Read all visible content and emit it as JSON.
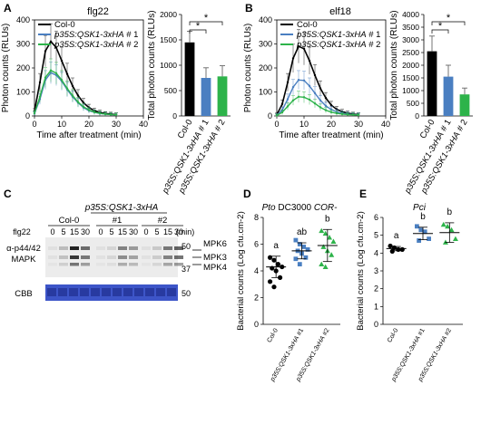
{
  "figure": {
    "panels": {
      "A": {
        "letter": "A",
        "line_title": "flg22",
        "legend": [
          "Col-0",
          "p35S:QSK1-3xHA # 1",
          "p35S:QSK1-3xHA # 2"
        ],
        "y_label": "Photon counts (RLUs)",
        "x_label": "Time after treatment  (min)",
        "bar_y_label": "Total photon counts (RLUs)",
        "bar_labels": [
          "Col-0",
          "p35S:QSK1-3xHA # 1",
          "p35S:QSK1-3xHA # 2"
        ],
        "sig": [
          "*",
          "*"
        ]
      },
      "B": {
        "letter": "B",
        "line_title": "elf18",
        "legend": [
          "Col-0",
          "p35S:QSK1-3xHA # 1",
          "p35S:QSK1-3xHA # 2"
        ],
        "y_label": "Photon counts (RLUs)",
        "x_label": "Time after treatment  (min)",
        "bar_y_label": "Total photon counts (RLUs)",
        "bar_labels": [
          "Col-0",
          "p35S:QSK1-3xHA # 1",
          "p35S:QSK1-3xHA # 2"
        ],
        "sig": [
          "*",
          "*"
        ]
      },
      "C": {
        "letter": "C",
        "transgene": "p35S:QSK1-3xHA",
        "groups": [
          "Col-0",
          "#1",
          "#2"
        ],
        "times": [
          "0",
          "5",
          "15",
          "30"
        ],
        "time_unit": "(min)",
        "treatment": "flg22",
        "blot_label": [
          "α-p44/42",
          "MAPK"
        ],
        "bands": [
          "MPK6",
          "MPK3",
          "MPK4"
        ],
        "markers": [
          "50",
          "37"
        ],
        "cbb_label": "CBB",
        "cbb_marker": "50"
      },
      "D": {
        "letter": "D",
        "title": "Pto DC3000 COR-",
        "y_label": "Bacterial counts (Log cfu.cm-2)",
        "categories": [
          "Col-0",
          "p35S:QSK1-3xHA #1",
          "p35S:QSK1-3xHA #2"
        ],
        "letters": [
          "a",
          "ab",
          "b"
        ]
      },
      "E": {
        "letter": "E",
        "title": "Pci",
        "y_label": "Bacterial counts (Log cfu.cm-2)",
        "categories": [
          "Col-0",
          "p35S:QSK1-3xHA #1",
          "p35S:QSK1-3xHA #2"
        ],
        "letters": [
          "a",
          "b",
          "b"
        ]
      }
    },
    "colors": {
      "col0": "#000000",
      "line1": "#4a7fc1",
      "line2": "#2db34a"
    }
  },
  "chart_data": [
    {
      "id": "A-line",
      "type": "line",
      "x": [
        0,
        2,
        4,
        6,
        8,
        10,
        12,
        14,
        16,
        18,
        20,
        22,
        24,
        26,
        28,
        30
      ],
      "series": [
        {
          "name": "Col-0",
          "values": [
            20,
            140,
            270,
            310,
            285,
            230,
            175,
            125,
            85,
            55,
            35,
            22,
            15,
            10,
            8,
            6
          ]
        },
        {
          "name": "p35S:QSK1-3xHA # 1",
          "values": [
            10,
            70,
            150,
            180,
            170,
            145,
            110,
            80,
            55,
            35,
            22,
            15,
            10,
            8,
            6,
            5
          ]
        },
        {
          "name": "p35S:QSK1-3xHA # 2",
          "values": [
            12,
            80,
            160,
            190,
            178,
            150,
            115,
            85,
            58,
            38,
            25,
            16,
            11,
            8,
            6,
            5
          ]
        }
      ],
      "xlim": [
        0,
        40
      ],
      "ylim": [
        0,
        400
      ],
      "xticks": [
        0,
        10,
        20,
        30,
        40
      ],
      "yticks": [
        0,
        100,
        200,
        300,
        400
      ]
    },
    {
      "id": "A-bar",
      "type": "bar",
      "categories": [
        "Col-0",
        "p35S:QSK1-3xHA # 1",
        "p35S:QSK1-3xHA # 2"
      ],
      "values": [
        1450,
        750,
        780
      ],
      "errors": [
        220,
        200,
        210
      ],
      "ylim": [
        0,
        2000
      ],
      "yticks": [
        0,
        500,
        1000,
        1500,
        2000
      ]
    },
    {
      "id": "B-line",
      "type": "line",
      "x": [
        0,
        2,
        4,
        6,
        8,
        10,
        12,
        14,
        16,
        18,
        20,
        22,
        24,
        26,
        28,
        30
      ],
      "series": [
        {
          "name": "Col-0",
          "values": [
            5,
            50,
            140,
            240,
            290,
            280,
            230,
            170,
            115,
            75,
            45,
            28,
            18,
            12,
            8,
            6
          ]
        },
        {
          "name": "p35S:QSK1-3xHA # 1",
          "values": [
            3,
            25,
            70,
            120,
            150,
            148,
            125,
            95,
            65,
            42,
            27,
            17,
            11,
            8,
            6,
            5
          ]
        },
        {
          "name": "p35S:QSK1-3xHA # 2",
          "values": [
            2,
            15,
            40,
            65,
            80,
            78,
            68,
            52,
            36,
            24,
            16,
            11,
            8,
            6,
            5,
            4
          ]
        }
      ],
      "xlim": [
        0,
        40
      ],
      "ylim": [
        0,
        400
      ],
      "xticks": [
        0,
        10,
        20,
        30,
        40
      ],
      "yticks": [
        0,
        100,
        200,
        300,
        400
      ]
    },
    {
      "id": "B-bar",
      "type": "bar",
      "categories": [
        "Col-0",
        "p35S:QSK1-3xHA # 1",
        "p35S:QSK1-3xHA # 2"
      ],
      "values": [
        2550,
        1550,
        850
      ],
      "errors": [
        600,
        450,
        250
      ],
      "ylim": [
        0,
        4000
      ],
      "yticks": [
        0,
        500,
        1000,
        1500,
        2000,
        2500,
        3000,
        3500,
        4000
      ]
    },
    {
      "id": "D",
      "type": "scatter",
      "categories": [
        "Col-0",
        "p35S:QSK1-3xHA #1",
        "p35S:QSK1-3xHA #2"
      ],
      "points": [
        [
          5.0,
          4.8,
          4.5,
          4.3,
          4.2,
          4.0,
          3.5,
          3.2,
          2.8
        ],
        [
          6.3,
          6.0,
          5.8,
          5.6,
          5.5,
          5.3,
          5.0,
          4.9,
          4.5
        ],
        [
          7.0,
          6.8,
          6.5,
          6.2,
          5.8,
          5.5,
          5.2,
          4.5,
          4.3
        ]
      ],
      "means": [
        4.3,
        5.5,
        5.9
      ],
      "sds": [
        0.8,
        0.6,
        1.2
      ],
      "ylim": [
        0,
        8
      ],
      "yticks": [
        0,
        2,
        4,
        6,
        8
      ]
    },
    {
      "id": "E",
      "type": "scatter",
      "categories": [
        "Col-0",
        "p35S:QSK1-3xHA #1",
        "p35S:QSK1-3xHA #2"
      ],
      "points": [
        [
          4.4,
          4.3,
          4.2,
          4.2,
          4.1
        ],
        [
          5.5,
          5.3,
          5.2,
          4.8,
          4.7
        ],
        [
          5.6,
          5.5,
          5.3,
          4.8,
          4.6
        ]
      ],
      "means": [
        4.25,
        5.1,
        5.15
      ],
      "sds": [
        0.12,
        0.35,
        0.55
      ],
      "ylim": [
        0,
        6
      ],
      "yticks": [
        0,
        1,
        2,
        3,
        4,
        5,
        6
      ]
    }
  ]
}
